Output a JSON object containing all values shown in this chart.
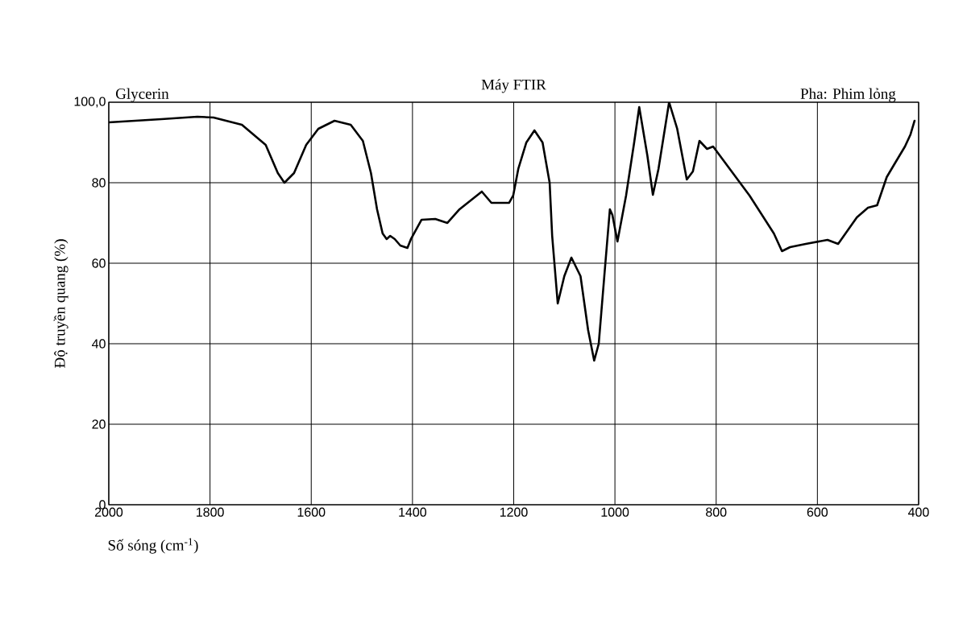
{
  "chart_data": {
    "type": "line",
    "title": "Máy FTIR",
    "xlabel": "Số sóng (cm$^{-1}$)",
    "ylabel": "Độ truyền quang (%)",
    "annotations": [
      "Glycerin",
      "Pha: Phim lỏng"
    ],
    "xlim": [
      2000,
      400
    ],
    "ylim": [
      0,
      100
    ],
    "xticks": [
      2000,
      1800,
      1600,
      1400,
      1200,
      1000,
      800,
      600,
      400
    ],
    "yticks": [
      0,
      20,
      40,
      60,
      80,
      {
        "value": 100,
        "label": "100,0"
      }
    ],
    "grid": true,
    "series": [
      {
        "color": "#000000",
        "x": [
          2000,
          1896,
          1825,
          1793,
          1737,
          1690,
          1666,
          1653,
          1634,
          1610,
          1586,
          1554,
          1522,
          1498,
          1482,
          1470,
          1459,
          1451,
          1444,
          1435,
          1424,
          1410,
          1403,
          1382,
          1355,
          1331,
          1307,
          1291,
          1263,
          1244,
          1209,
          1201,
          1191,
          1175,
          1159,
          1143,
          1129,
          1124,
          1113,
          1100,
          1086,
          1068,
          1053,
          1041,
          1032,
          1021,
          1010,
          1005,
          995,
          978,
          962,
          952,
          936,
          925,
          914,
          893,
          877,
          858,
          846,
          833,
          818,
          806,
          734,
          686,
          670,
          654,
          623,
          580,
          559,
          522,
          500,
          482,
          463,
          447,
          427,
          416,
          408
        ],
        "values": [
          95,
          95.8,
          96.4,
          96.2,
          94.4,
          89.4,
          82.4,
          80,
          82.4,
          89.4,
          93.4,
          95.4,
          94.4,
          90.4,
          82.4,
          73.4,
          67.4,
          66,
          66.8,
          66,
          64.4,
          63.8,
          66,
          70.8,
          71,
          70,
          73.4,
          75,
          77.8,
          75,
          75,
          76.8,
          83.4,
          90,
          93,
          90,
          80,
          66.8,
          50,
          56.8,
          61.4,
          56.8,
          43.4,
          35.8,
          40,
          56.8,
          73.4,
          72,
          65.4,
          76.8,
          90,
          98.8,
          86.8,
          77,
          83.4,
          100,
          93.4,
          80.8,
          82.8,
          90.4,
          88.4,
          89,
          76.8,
          67.4,
          63,
          64,
          64.8,
          65.8,
          64.8,
          71.4,
          73.8,
          74.4,
          81.4,
          84.8,
          89,
          92,
          95.4
        ]
      }
    ]
  }
}
